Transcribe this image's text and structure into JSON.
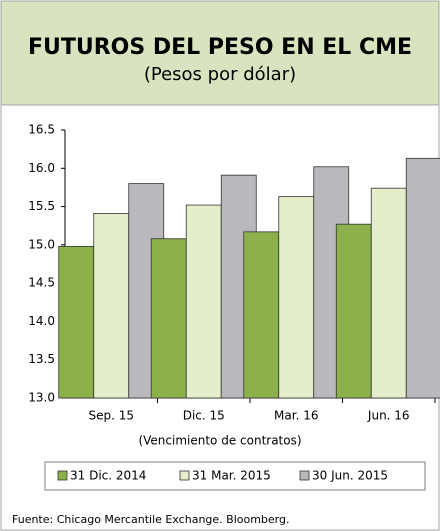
{
  "chart_data": {
    "type": "bar",
    "title": "FUTUROS DEL PESO EN EL CME",
    "subtitle": "(Pesos por dólar)",
    "x_label": "(Vencimiento de contratos)",
    "source": "Fuente: Chicago Mercantile Exchange. Bloomberg.",
    "categories": [
      "Sep. 15",
      "Dic. 15",
      "Mar. 16",
      "Jun. 16"
    ],
    "series": [
      {
        "name": "31 Dic. 2014",
        "color": "#8cb04c",
        "values": [
          14.98,
          15.08,
          15.17,
          15.27
        ]
      },
      {
        "name": "31 Mar. 2015",
        "color": "#e4eecb",
        "values": [
          15.41,
          15.52,
          15.63,
          15.74
        ]
      },
      {
        "name": "30 Jun. 2015",
        "color": "#b9b9bd",
        "values": [
          15.8,
          15.91,
          16.02,
          16.13
        ]
      }
    ],
    "ylim": [
      13.0,
      16.5
    ],
    "yticks": [
      {
        "value": 13.0,
        "label": "13.0"
      },
      13.5,
      {
        "value": 14.0,
        "label": "14.0"
      },
      14.5,
      {
        "value": 15.0,
        "label": "15.0"
      },
      15.5,
      {
        "value": 16.0,
        "label": "16.0"
      },
      16.5
    ],
    "grid": false,
    "legend": "bottom"
  }
}
